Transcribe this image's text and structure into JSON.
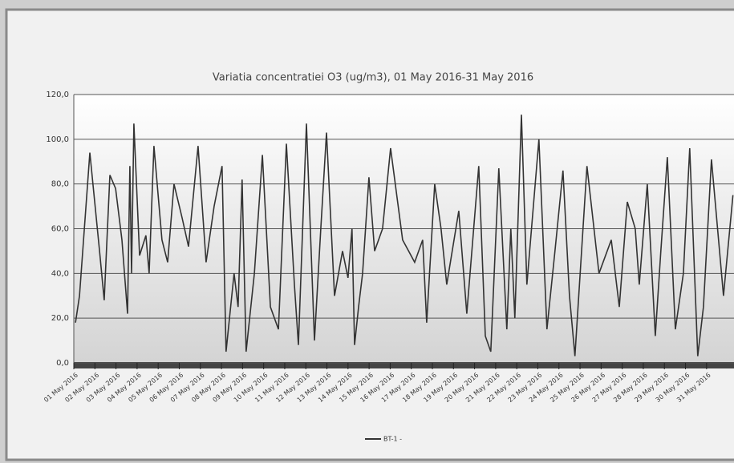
{
  "chart_data": {
    "type": "line",
    "title": "Variatia concentratiei  O3 (ug/m3), 01 May 2016-31 May 2016",
    "x": [
      0.08,
      0.27,
      0.76,
      1.22,
      1.44,
      1.71,
      1.98,
      2.28,
      2.55,
      2.66,
      2.74,
      2.85,
      3.12,
      3.42,
      3.57,
      3.8,
      4.18,
      4.45,
      4.75,
      5.13,
      5.44,
      5.89,
      6.27,
      6.65,
      7.03,
      7.22,
      7.6,
      7.79,
      7.98,
      8.17,
      8.56,
      8.94,
      9.32,
      9.7,
      10.08,
      10.46,
      10.65,
      11.03,
      11.41,
      11.71,
      11.98,
      12.36,
      12.74,
      13.0,
      13.19,
      13.31,
      13.5,
      13.69,
      13.99,
      14.26,
      14.64,
      15.02,
      15.59,
      16.16,
      16.54,
      16.73,
      17.11,
      17.41,
      17.68,
      18.25,
      18.63,
      19.2,
      19.51,
      19.77,
      20.15,
      20.53,
      20.72,
      20.91,
      21.22,
      21.48,
      22.05,
      22.43,
      22.81,
      23.19,
      23.5,
      23.76,
      24.33,
      24.9,
      25.48,
      25.86,
      26.24,
      26.62,
      26.81,
      27.19,
      27.57,
      27.83,
      28.14,
      28.52,
      28.9,
      29.2,
      29.58,
      29.85,
      30.23,
      30.8,
      31.25
    ],
    "series": [
      {
        "name": "BT-1 -",
        "color": "#333333",
        "values": [
          18,
          30,
          94,
          50,
          28,
          84,
          78,
          55,
          22,
          88,
          40,
          107,
          48,
          57,
          40,
          97,
          55,
          45,
          80,
          65,
          52,
          97,
          45,
          70,
          88,
          5,
          40,
          25,
          82,
          5,
          40,
          93,
          25,
          15,
          98,
          35,
          8,
          107,
          10,
          60,
          103,
          30,
          50,
          38,
          60,
          8,
          25,
          40,
          83,
          50,
          60,
          96,
          55,
          45,
          55,
          18,
          80,
          60,
          35,
          68,
          22,
          88,
          12,
          5,
          87,
          15,
          60,
          20,
          111,
          35,
          100,
          15,
          50,
          86,
          30,
          3,
          88,
          40,
          55,
          25,
          72,
          60,
          35,
          80,
          12,
          50,
          92,
          15,
          40,
          96,
          3,
          25,
          91,
          30,
          75
        ]
      }
    ],
    "xlim": [
      0,
      31.3
    ],
    "xticks": [
      {
        "value": 0,
        "label": "01 May 2016"
      },
      {
        "value": 1,
        "label": "02 May 2016"
      },
      {
        "value": 2,
        "label": "03 May 2016"
      },
      {
        "value": 3,
        "label": "04 May 2016"
      },
      {
        "value": 4,
        "label": "05 May 2016"
      },
      {
        "value": 5,
        "label": "06 May 2016"
      },
      {
        "value": 6,
        "label": "07 May 2016"
      },
      {
        "value": 7,
        "label": "08 May 2016"
      },
      {
        "value": 8,
        "label": "09 May 2016"
      },
      {
        "value": 9,
        "label": "10 May 2016"
      },
      {
        "value": 10,
        "label": "11 May 2016"
      },
      {
        "value": 11,
        "label": "12 May 2016"
      },
      {
        "value": 12,
        "label": "13 May 2016"
      },
      {
        "value": 13,
        "label": "14 May 2016"
      },
      {
        "value": 14,
        "label": "15 May 2016"
      },
      {
        "value": 15,
        "label": "16 May 2016"
      },
      {
        "value": 16,
        "label": "17 May 2016"
      },
      {
        "value": 17,
        "label": "18 May 2016"
      },
      {
        "value": 18,
        "label": "19 May 2016"
      },
      {
        "value": 19,
        "label": "20 May 2016"
      },
      {
        "value": 20,
        "label": "21 May 2016"
      },
      {
        "value": 21,
        "label": "22 May 2016"
      },
      {
        "value": 22,
        "label": "23 May 2016"
      },
      {
        "value": 23,
        "label": "24 May 2016"
      },
      {
        "value": 24,
        "label": "25 May 2016"
      },
      {
        "value": 25,
        "label": "26 May 2016"
      },
      {
        "value": 26,
        "label": "27 May 2016"
      },
      {
        "value": 27,
        "label": "28 May 2016"
      },
      {
        "value": 28,
        "label": "29 May 2016"
      },
      {
        "value": 29,
        "label": "30 May 2016"
      },
      {
        "value": 30,
        "label": "31 May 2016"
      }
    ],
    "ylim": [
      0,
      120
    ],
    "yticks": [
      {
        "value": 0,
        "label": "0,0"
      },
      {
        "value": 20,
        "label": "20,0"
      },
      {
        "value": 40,
        "label": "40,0"
      },
      {
        "value": 60,
        "label": "60,0"
      },
      {
        "value": 80,
        "label": "80,0"
      },
      {
        "value": 100,
        "label": "100,0"
      },
      {
        "value": 120,
        "label": "120,0"
      }
    ],
    "grid": true,
    "legend": "bottom"
  }
}
